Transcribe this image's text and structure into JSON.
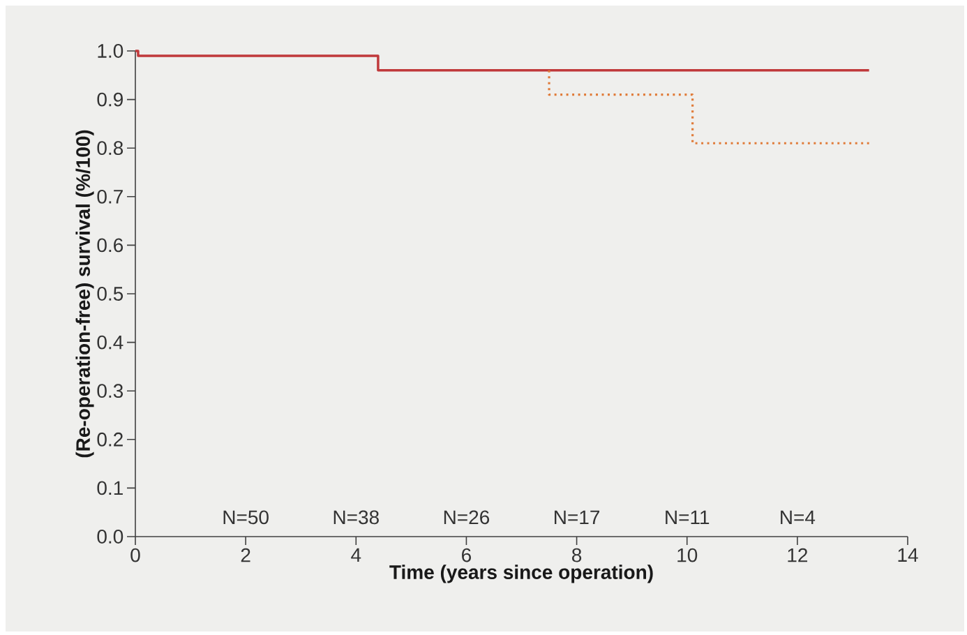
{
  "chart_data": {
    "type": "step",
    "xlabel": "Time (years since operation)",
    "ylabel": "(Re-operation-free) survival (%/100)",
    "xlim": [
      0,
      14
    ],
    "xticks": [
      0,
      2,
      4,
      6,
      8,
      10,
      12,
      14
    ],
    "ylim": [
      0,
      1.0
    ],
    "yticks": [
      {
        "value": 0,
        "label": "0.0"
      },
      0.1,
      0.2,
      0.3,
      0.4,
      0.5,
      0.6,
      0.7,
      0.8,
      0.9,
      {
        "value": 1.0,
        "label": "1.0"
      }
    ],
    "grid": false,
    "marker": "none",
    "series": [
      {
        "color": "#c0393b",
        "line_style": "solid",
        "x": [
          0,
          0.05,
          4.4,
          13.3
        ],
        "values": [
          1.0,
          0.99,
          0.96,
          0.96
        ]
      },
      {
        "color": "#e07b39",
        "line_style": "dotted",
        "x": [
          7.5,
          7.5,
          10.1,
          13.3
        ],
        "values": [
          0.96,
          0.91,
          0.81,
          0.81
        ]
      }
    ],
    "annotations": [
      "N=50",
      "N=38",
      "N=26",
      "N=17",
      "N=11",
      "N=4"
    ]
  }
}
